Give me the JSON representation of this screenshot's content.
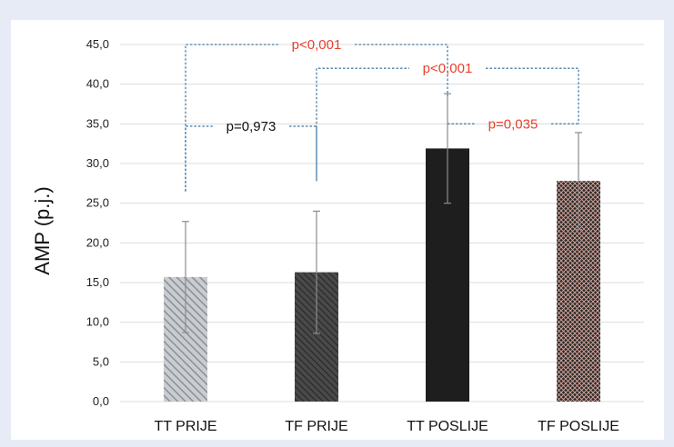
{
  "chart_data": {
    "type": "bar",
    "ylabel": "AMP (p.j.)",
    "ylim": [
      0,
      45
    ],
    "ytick_step": 5,
    "ytick_labels": [
      "0,0",
      "5,0",
      "10,0",
      "15,0",
      "20,0",
      "25,0",
      "30,0",
      "35,0",
      "40,0",
      "45,0"
    ],
    "grid": true,
    "categories": [
      "TT PRIJE",
      "TF PRIJE",
      "TT POSLIJE",
      "TF POSLIJE"
    ],
    "values": [
      15.7,
      16.3,
      31.9,
      27.8
    ],
    "errors": [
      7.0,
      7.7,
      6.9,
      6.1
    ],
    "bar_styles": [
      "light-hatch",
      "dark-hatch",
      "solid-black",
      "crosshatch"
    ],
    "colors": {
      "bar_dark": "#1e1e1e",
      "bar_medium": "#3a3a3a",
      "hatch_light": "#9aa0a6",
      "grid": "#dcdcdc",
      "bracket": "#4b7fa8",
      "significant": "#e8402e",
      "not_significant": "#111111"
    },
    "annotations": [
      {
        "label": "p<0,001",
        "from": 0,
        "to": 2,
        "level": 45.0,
        "from_bottom": 26.5,
        "to_bottom": 38.5,
        "significant": true
      },
      {
        "label": "p=0,973",
        "from": 0,
        "to": 1,
        "level": 34.7,
        "from_bottom": 26.5,
        "to_bottom": 27.8,
        "significant": false
      },
      {
        "label": "p<0,001",
        "from": 1,
        "to": 3,
        "level": 42.0,
        "from_bottom": 27.8,
        "to_bottom": 35.0,
        "significant": true
      },
      {
        "label": "p=0,035",
        "from": 2,
        "to": 3,
        "level": 35.0,
        "from_bottom": 35.0,
        "to_bottom": 35.0,
        "significant": true
      }
    ]
  }
}
